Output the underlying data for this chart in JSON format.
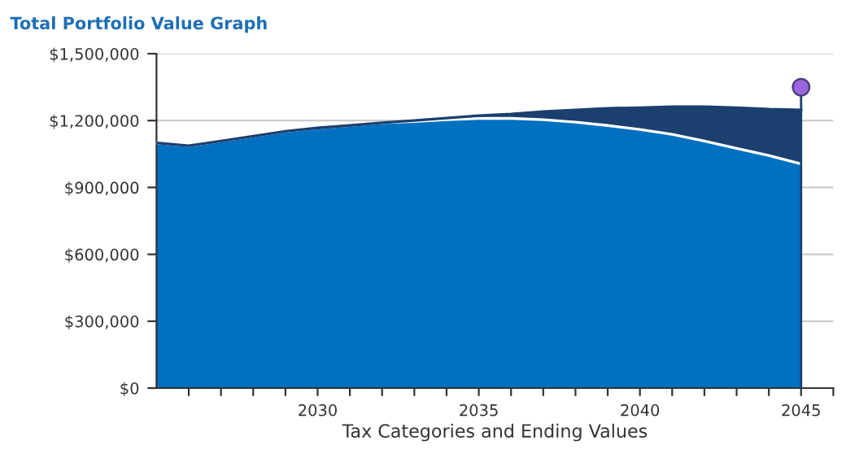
{
  "chart_data": {
    "type": "area",
    "stacked": true,
    "title": "Total Portfolio Value Graph",
    "xlabel": "Tax Categories and Ending Values",
    "x": [
      2025,
      2026,
      2027,
      2028,
      2029,
      2030,
      2031,
      2032,
      2033,
      2034,
      2035,
      2036,
      2037,
      2038,
      2039,
      2040,
      2041,
      2042,
      2043,
      2044,
      2045
    ],
    "series": [
      {
        "color": "#0070c0",
        "values": [
          1100000,
          1087000,
          1108000,
          1130000,
          1152000,
          1167000,
          1178000,
          1190000,
          1196000,
          1204000,
          1210000,
          1210000,
          1204000,
          1193000,
          1178000,
          1160000,
          1138000,
          1108000,
          1075000,
          1043000,
          1006000
        ]
      },
      {
        "color": "#1b3f6e",
        "values": [
          0,
          0,
          0,
          0,
          0,
          0,
          0,
          0,
          4000,
          7000,
          12000,
          19000,
          36000,
          55000,
          77000,
          98000,
          124000,
          154000,
          183000,
          208000,
          242000
        ]
      },
      {
        "type": "lollipop",
        "marker": "circle",
        "color": "#9966dd",
        "x": [
          2045
        ],
        "values": [
          1350000
        ]
      }
    ],
    "xlim": [
      2025,
      2046
    ],
    "xticks": [
      {
        "value": 2026,
        "label": null
      },
      {
        "value": 2027,
        "label": null
      },
      {
        "value": 2028,
        "label": null
      },
      {
        "value": 2029,
        "label": null
      },
      2030,
      {
        "value": 2031,
        "label": null
      },
      {
        "value": 2032,
        "label": null
      },
      {
        "value": 2033,
        "label": null
      },
      {
        "value": 2034,
        "label": null
      },
      2035,
      {
        "value": 2036,
        "label": null
      },
      {
        "value": 2037,
        "label": null
      },
      {
        "value": 2038,
        "label": null
      },
      {
        "value": 2039,
        "label": null
      },
      2040,
      {
        "value": 2041,
        "label": null
      },
      {
        "value": 2042,
        "label": null
      },
      {
        "value": 2043,
        "label": null
      },
      {
        "value": 2044,
        "label": null
      },
      2045,
      {
        "value": 2046,
        "label": null
      }
    ],
    "ylim": [
      0,
      1500000
    ],
    "yticks": [
      {
        "value": 0,
        "label": "$0"
      },
      {
        "value": 300000,
        "label": "$300,000"
      },
      {
        "value": 600000,
        "label": "$600,000"
      },
      {
        "value": 900000,
        "label": "$900,000"
      },
      {
        "value": 1200000,
        "label": "$1,200,000"
      },
      {
        "value": 1500000,
        "label": "$1,500,000"
      }
    ],
    "grid": "y"
  }
}
